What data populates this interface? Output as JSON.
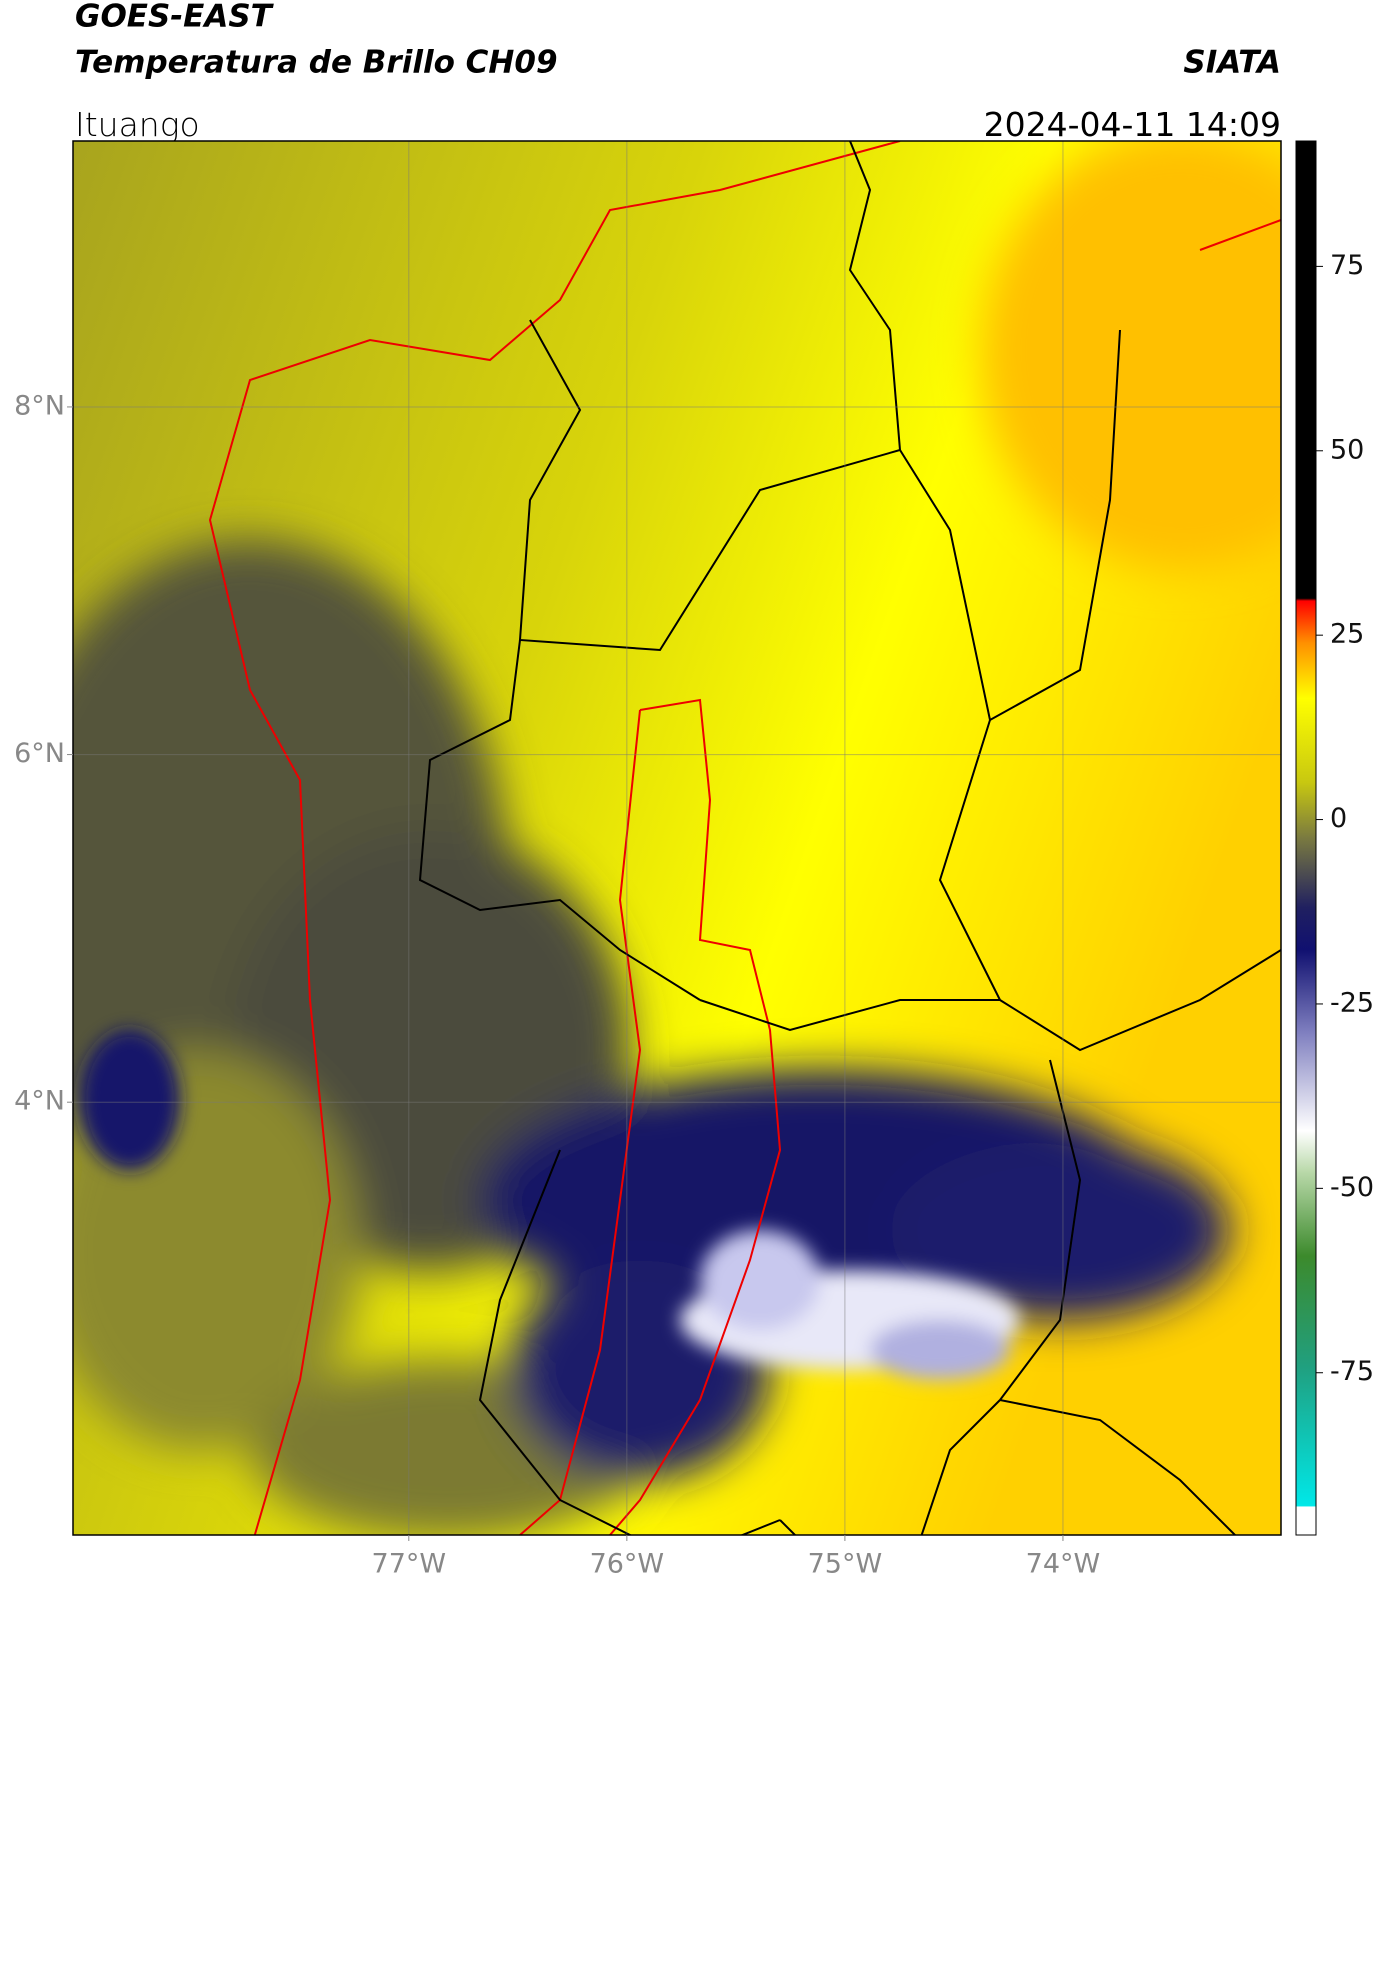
{
  "header": {
    "title_line1": "GOES-EAST",
    "title_line2": "Temperatura de Brillo CH09",
    "source": "SIATA",
    "location": "Ituango",
    "datetime": "2024-04-11 14:09"
  },
  "map": {
    "lon_range": [
      -78.54,
      -73.0
    ],
    "lat_range": [
      1.51,
      9.53
    ],
    "lon_ticks": [
      {
        "value": -77,
        "label": "77°W"
      },
      {
        "value": -76,
        "label": "76°W"
      },
      {
        "value": -75,
        "label": "75°W"
      },
      {
        "value": -74,
        "label": "74°W"
      }
    ],
    "lat_ticks": [
      {
        "value": 8,
        "label": "8°N"
      },
      {
        "value": 6,
        "label": "6°N"
      },
      {
        "value": 4,
        "label": "4°N"
      }
    ]
  },
  "colorbar": {
    "range": [
      -97,
      92
    ],
    "ticks": [
      75,
      50,
      25,
      0,
      -25,
      -50,
      -75
    ]
  }
}
